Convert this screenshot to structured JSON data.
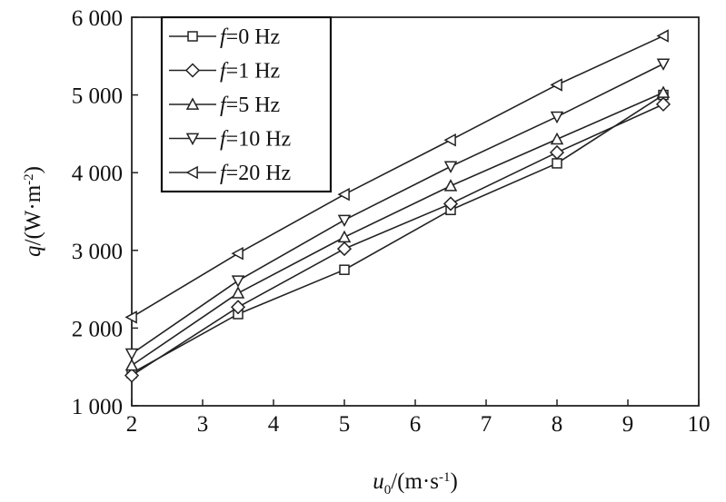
{
  "chart_data": {
    "type": "line",
    "title": "",
    "xlabel": {
      "var": "u",
      "sub": "0",
      "unit": "/(m·s",
      "sup": "-1",
      "close": ")"
    },
    "ylabel": {
      "var": "q",
      "unit": "/(W·m",
      "sup": "-2",
      "close": ")"
    },
    "xlim": [
      2,
      10
    ],
    "ylim": [
      1000,
      6000
    ],
    "xticks": [
      2,
      3,
      4,
      5,
      6,
      7,
      8,
      9,
      10
    ],
    "xtick_labels": [
      "2",
      "3",
      "4",
      "5",
      "6",
      "7",
      "8",
      "9",
      "10"
    ],
    "yticks": [
      1000,
      2000,
      3000,
      4000,
      5000,
      6000
    ],
    "ytick_labels": [
      "1 000",
      "2 000",
      "3 000",
      "4 000",
      "5 000",
      "6 000"
    ],
    "grid": false,
    "legend_position": "top-left",
    "x": [
      2,
      3.5,
      5,
      6.5,
      8,
      9.5
    ],
    "series": [
      {
        "name": "f=0 Hz",
        "legend_var": "f",
        "legend_rest": "=0 Hz",
        "marker": "square",
        "values": [
          1420,
          2180,
          2750,
          3520,
          4120,
          5000
        ]
      },
      {
        "name": "f=1 Hz",
        "legend_var": "f",
        "legend_rest": "=1 Hz",
        "marker": "diamond",
        "values": [
          1390,
          2270,
          3020,
          3600,
          4260,
          4880
        ]
      },
      {
        "name": "f=5 Hz",
        "legend_var": "f",
        "legend_rest": "=5 Hz",
        "marker": "triangle-up",
        "values": [
          1520,
          2450,
          3170,
          3830,
          4430,
          5030
        ]
      },
      {
        "name": "f=10 Hz",
        "legend_var": "f",
        "legend_rest": "=10 Hz",
        "marker": "triangle-down",
        "values": [
          1670,
          2610,
          3390,
          4080,
          4720,
          5400
        ]
      },
      {
        "name": "f=20 Hz",
        "legend_var": "f",
        "legend_rest": "=20 Hz",
        "marker": "triangle-left",
        "values": [
          2140,
          2960,
          3720,
          4420,
          5130,
          5760
        ]
      }
    ]
  }
}
